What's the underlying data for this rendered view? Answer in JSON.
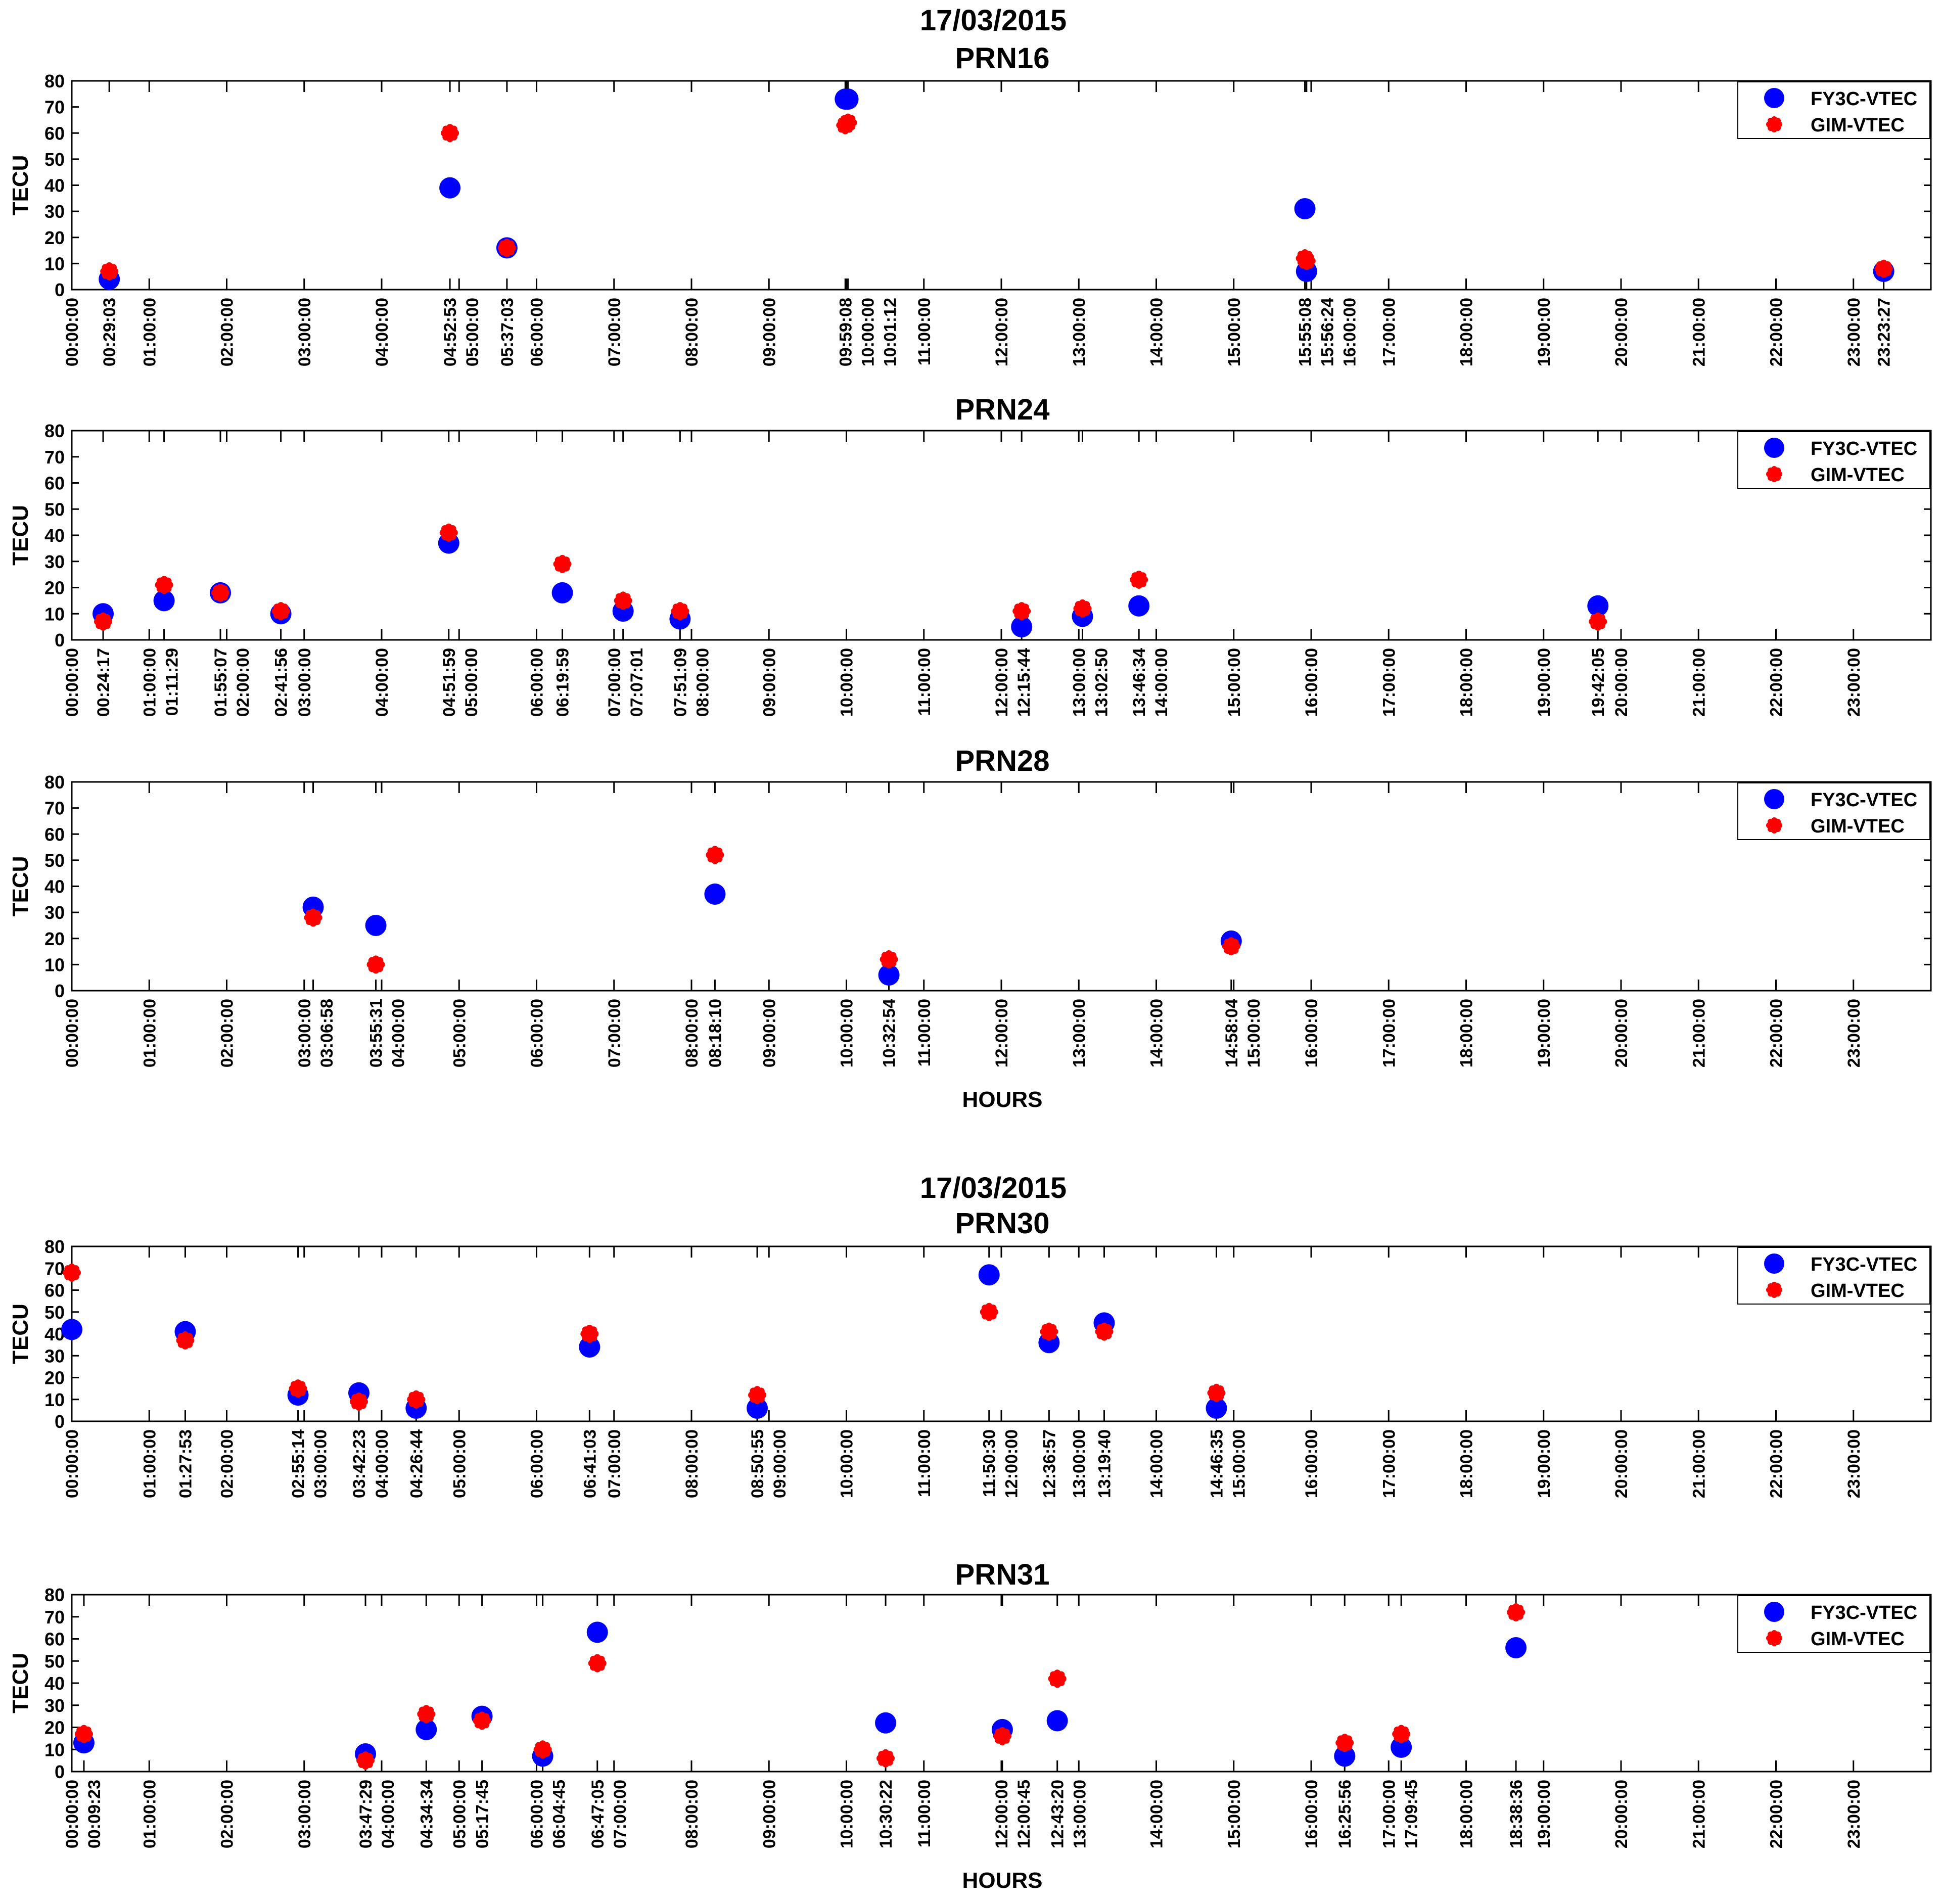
{
  "colors": {
    "fy3c": "#0000ff",
    "gim": "#ff0000"
  },
  "chart_data": [
    {
      "type": "scatter",
      "group_title": "17/03/2015",
      "title": "PRN16",
      "xlabel": "",
      "ylabel": "TECU",
      "ylim": [
        0,
        80
      ],
      "yticks": [
        "0",
        "10",
        "20",
        "30",
        "40",
        "50",
        "60",
        "70",
        "80"
      ],
      "legend": [
        "FY3C-VTEC",
        "GIM-VTEC"
      ],
      "legend_position": "top-right",
      "x_obs_labels": [
        "00:29:03",
        "04:52:53",
        "05:37:03",
        "09:59:08",
        "10:01:12",
        "15:55:08",
        "15:56:24",
        "23:23:27"
      ],
      "series": [
        {
          "name": "FY3C-VTEC",
          "x": [
            "00:29:03",
            "04:52:53",
            "05:37:03",
            "09:59:08",
            "10:01:12",
            "15:55:08",
            "15:56:24",
            "23:23:27"
          ],
          "values": [
            4,
            39,
            16,
            73,
            73,
            31,
            7,
            7
          ]
        },
        {
          "name": "GIM-VTEC",
          "x": [
            "00:29:03",
            "04:52:53",
            "05:37:03",
            "09:59:08",
            "10:01:12",
            "15:55:08",
            "15:56:24",
            "23:23:27"
          ],
          "values": [
            7,
            60,
            16,
            63,
            64,
            12,
            11,
            8
          ]
        }
      ]
    },
    {
      "type": "scatter",
      "group_title": "",
      "title": "PRN24",
      "xlabel": "",
      "ylabel": "TECU",
      "ylim": [
        0,
        80
      ],
      "yticks": [
        "0",
        "10",
        "20",
        "30",
        "40",
        "50",
        "60",
        "70",
        "80"
      ],
      "legend": [
        "FY3C-VTEC",
        "GIM-VTEC"
      ],
      "legend_position": "top-right",
      "x_obs_labels": [
        "00:24:17",
        "01:11:29",
        "01:55:07",
        "02:41:56",
        "04:51:59",
        "06:19:59",
        "07:07:01",
        "07:51:09",
        "12:15:44",
        "13:02:50",
        "13:46:34",
        "19:42:05"
      ],
      "series": [
        {
          "name": "FY3C-VTEC",
          "x": [
            "00:24:17",
            "01:11:29",
            "01:55:07",
            "02:41:56",
            "04:51:59",
            "06:19:59",
            "07:07:01",
            "07:51:09",
            "12:15:44",
            "13:02:50",
            "13:46:34",
            "19:42:05"
          ],
          "values": [
            10,
            15,
            18,
            10,
            37,
            18,
            11,
            8,
            5,
            9,
            13,
            13
          ]
        },
        {
          "name": "GIM-VTEC",
          "x": [
            "00:24:17",
            "01:11:29",
            "01:55:07",
            "02:41:56",
            "04:51:59",
            "06:19:59",
            "07:07:01",
            "07:51:09",
            "12:15:44",
            "13:02:50",
            "13:46:34",
            "19:42:05"
          ],
          "values": [
            7,
            21,
            18,
            11,
            41,
            29,
            15,
            11,
            11,
            12,
            23,
            7
          ]
        }
      ]
    },
    {
      "type": "scatter",
      "group_title": "",
      "title": "PRN28",
      "xlabel": "HOURS",
      "ylabel": "TECU",
      "ylim": [
        0,
        80
      ],
      "yticks": [
        "0",
        "10",
        "20",
        "30",
        "40",
        "50",
        "60",
        "70",
        "80"
      ],
      "legend": [
        "FY3C-VTEC",
        "GIM-VTEC"
      ],
      "legend_position": "top-right",
      "x_obs_labels": [
        "03:06:58",
        "03:55:31",
        "08:18:10",
        "10:32:54",
        "14:58:04"
      ],
      "series": [
        {
          "name": "FY3C-VTEC",
          "x": [
            "03:06:58",
            "03:55:31",
            "08:18:10",
            "10:32:54",
            "14:58:04"
          ],
          "values": [
            32,
            25,
            37,
            6,
            19
          ]
        },
        {
          "name": "GIM-VTEC",
          "x": [
            "03:06:58",
            "03:55:31",
            "08:18:10",
            "10:32:54",
            "14:58:04"
          ],
          "values": [
            28,
            10,
            52,
            12,
            17
          ]
        }
      ]
    },
    {
      "type": "scatter",
      "group_title": "17/03/2015",
      "title": "PRN30",
      "xlabel": "",
      "ylabel": "TECU",
      "ylim": [
        0,
        80
      ],
      "yticks": [
        "0",
        "10",
        "20",
        "30",
        "40",
        "50",
        "60",
        "70",
        "80"
      ],
      "legend": [
        "FY3C-VTEC",
        "GIM-VTEC"
      ],
      "legend_position": "top-right",
      "x_obs_labels": [
        "01:27:53",
        "02:55:14",
        "03:42:23",
        "04:26:44",
        "06:41:03",
        "08:50:55",
        "11:50:30",
        "12:36:57",
        "13:19:40",
        "14:46:35"
      ],
      "series": [
        {
          "name": "FY3C-VTEC",
          "x": [
            "00:00:00",
            "01:27:53",
            "02:55:14",
            "03:42:23",
            "04:26:44",
            "06:41:03",
            "08:50:55",
            "11:50:30",
            "12:36:57",
            "13:19:40",
            "14:46:35"
          ],
          "values": [
            42,
            41,
            12,
            13,
            6,
            34,
            6,
            67,
            36,
            45,
            6
          ]
        },
        {
          "name": "GIM-VTEC",
          "x": [
            "00:00:00",
            "01:27:53",
            "02:55:14",
            "03:42:23",
            "04:26:44",
            "06:41:03",
            "08:50:55",
            "11:50:30",
            "12:36:57",
            "13:19:40",
            "14:46:35"
          ],
          "values": [
            68,
            37,
            15,
            9,
            10,
            40,
            12,
            50,
            41,
            41,
            13
          ]
        }
      ]
    },
    {
      "type": "scatter",
      "group_title": "",
      "title": "PRN31",
      "xlabel": "HOURS",
      "ylabel": "TECU",
      "ylim": [
        0,
        80
      ],
      "yticks": [
        "0",
        "10",
        "20",
        "30",
        "40",
        "50",
        "60",
        "70",
        "80"
      ],
      "legend": [
        "FY3C-VTEC",
        "GIM-VTEC"
      ],
      "legend_position": "top-right",
      "x_obs_labels": [
        "00:09:23",
        "03:47:29",
        "04:34:34",
        "05:17:45",
        "06:04:45",
        "06:47:05",
        "10:30:22",
        "12:00:45",
        "12:43:20",
        "16:25:56",
        "17:09:45",
        "18:38:36"
      ],
      "series": [
        {
          "name": "FY3C-VTEC",
          "x": [
            "00:09:23",
            "03:47:29",
            "04:34:34",
            "05:17:45",
            "06:04:45",
            "06:47:05",
            "10:30:22",
            "12:00:45",
            "12:43:20",
            "16:25:56",
            "17:09:45",
            "18:38:36"
          ],
          "values": [
            13,
            8,
            19,
            25,
            7,
            63,
            22,
            19,
            23,
            7,
            11,
            56
          ]
        },
        {
          "name": "GIM-VTEC",
          "x": [
            "00:09:23",
            "03:47:29",
            "04:34:34",
            "05:17:45",
            "06:04:45",
            "06:47:05",
            "10:30:22",
            "12:00:45",
            "12:43:20",
            "16:25:56",
            "17:09:45",
            "18:38:36"
          ],
          "values": [
            17,
            5,
            26,
            23,
            10,
            49,
            6,
            16,
            42,
            13,
            17,
            72
          ]
        }
      ]
    }
  ],
  "hour_tick_labels": [
    "00:00:00",
    "01:00:00",
    "02:00:00",
    "03:00:00",
    "04:00:00",
    "05:00:00",
    "06:00:00",
    "07:00:00",
    "08:00:00",
    "09:00:00",
    "10:00:00",
    "11:00:00",
    "12:00:00",
    "13:00:00",
    "14:00:00",
    "15:00:00",
    "16:00:00",
    "17:00:00",
    "18:00:00",
    "19:00:00",
    "20:00:00",
    "21:00:00",
    "22:00:00",
    "23:00:00"
  ]
}
